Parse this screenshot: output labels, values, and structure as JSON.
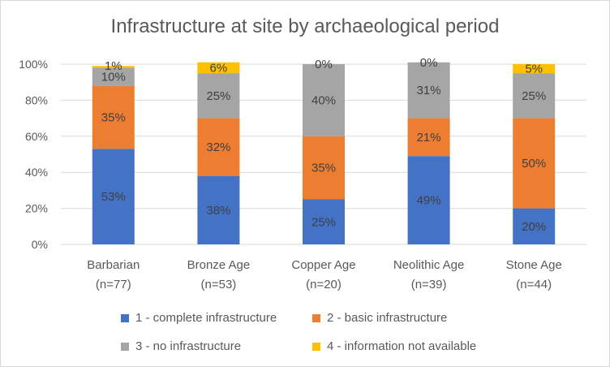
{
  "chart_data": {
    "type": "bar",
    "stacked": "percent",
    "title": "Infrastructure at site by archaeological period",
    "categories": [
      [
        "Barbarian",
        "(n=77)"
      ],
      [
        "Bronze Age",
        "(n=53)"
      ],
      [
        "Copper Age",
        "(n=20)"
      ],
      [
        "Neolithic Age",
        "(n=39)"
      ],
      [
        "Stone Age",
        "(n=44)"
      ]
    ],
    "series": [
      {
        "name": "1 - complete infrastructure",
        "color": "#4472C4",
        "values": [
          53,
          38,
          25,
          49,
          20
        ],
        "labels": [
          "53%",
          "38%",
          "25%",
          "49%",
          "20%"
        ]
      },
      {
        "name": "2 - basic infrastructure",
        "color": "#ED7D31",
        "values": [
          35,
          32,
          35,
          21,
          50
        ],
        "labels": [
          "35%",
          "32%",
          "35%",
          "21%",
          "50%"
        ]
      },
      {
        "name": "3 - no infrastructure",
        "color": "#A5A5A5",
        "values": [
          10,
          25,
          40,
          31,
          25
        ],
        "labels": [
          "10%",
          "25%",
          "40%",
          "31%",
          "25%"
        ]
      },
      {
        "name": "4 - information not available",
        "color": "#FFC000",
        "values": [
          1,
          6,
          0,
          0,
          5
        ],
        "labels": [
          "1%",
          "6%",
          "0%",
          "0%",
          "5%"
        ]
      }
    ],
    "yticks": [
      "0%",
      "20%",
      "40%",
      "60%",
      "80%",
      "100%"
    ],
    "ylim": [
      0,
      100
    ],
    "grid": true,
    "legend_position": "bottom"
  }
}
